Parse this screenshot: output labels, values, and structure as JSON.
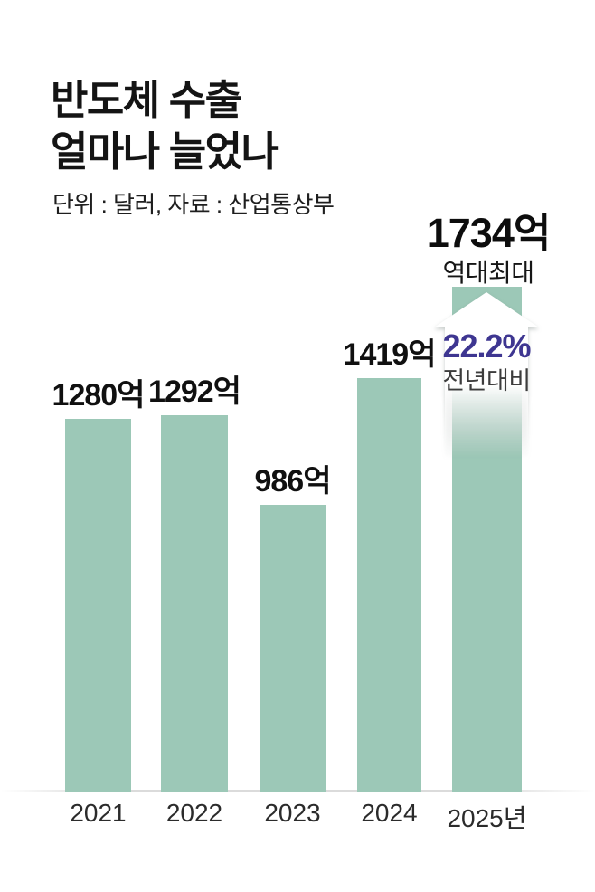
{
  "title": {
    "line1": "반도체 수출",
    "line2": "얼마나 늘었나"
  },
  "subtitle": "단위 : 달러, 자료 : 산업통상부",
  "highlight": {
    "value_label": "1734억",
    "note": "역대최대",
    "change_pct": "22.2%",
    "change_note": "전년대비"
  },
  "colors": {
    "bar": "#9cc8b7",
    "accent_purple": "#3e3691",
    "text": "#141414",
    "secondary_text": "#3c3c3c",
    "arrow": "#ffffff"
  },
  "chart_data": {
    "type": "bar",
    "title": "반도체 수출 얼마나 늘었나",
    "subtitle": "단위 : 달러, 자료 : 산업통상부",
    "categories": [
      "2021",
      "2022",
      "2023",
      "2024",
      "2025년"
    ],
    "values": [
      1280,
      1292,
      986,
      1419,
      1734
    ],
    "value_labels": [
      "1280억",
      "1292억",
      "986억",
      "1419억",
      "1734억"
    ],
    "annotations": [
      {
        "target": "2025년",
        "text": "역대최대"
      },
      {
        "target": "2025년",
        "text": "22.2%"
      },
      {
        "target": "2025년",
        "text": "전년대비"
      },
      {
        "target": "2025년",
        "icon": "up-arrow"
      }
    ],
    "ylim": [
      0,
      1800
    ],
    "grid": false,
    "legend": "none",
    "xlabel": "",
    "ylabel": ""
  }
}
